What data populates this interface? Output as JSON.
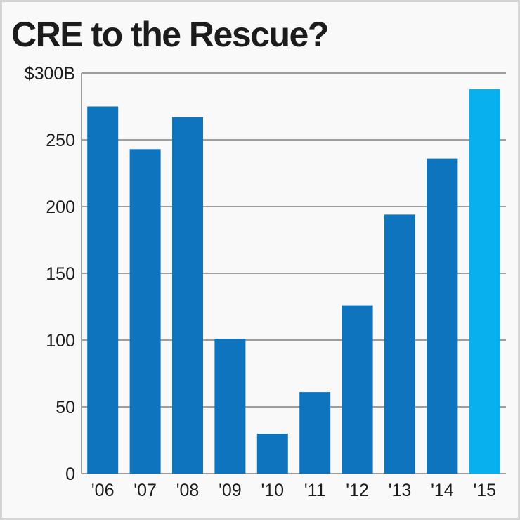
{
  "chart_data": {
    "type": "bar",
    "title": "CRE to the Rescue?",
    "categories": [
      "'06",
      "'07",
      "'08",
      "'09",
      "'10",
      "'11",
      "'12",
      "'13",
      "'14",
      "'15"
    ],
    "values": [
      275,
      243,
      267,
      101,
      30,
      61,
      126,
      194,
      236,
      288
    ],
    "ytick_labels": [
      "0",
      "50",
      "100",
      "150",
      "200",
      "250",
      "$300B"
    ],
    "ylim": [
      0,
      300
    ],
    "xlabel": "",
    "ylabel": "",
    "grid": true,
    "legend": "none",
    "colors": {
      "bar": "#0f74be",
      "highlight": "#09b0ee",
      "grid": "#9e9e9e"
    },
    "highlight_index": 9
  }
}
